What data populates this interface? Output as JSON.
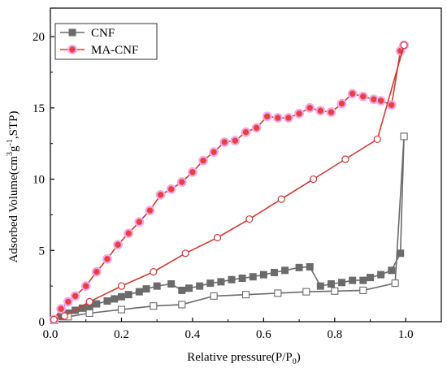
{
  "chart_data": {
    "type": "line",
    "xlabel": "Relative pressure(P/P0)",
    "xlabel_parts": {
      "main": "Relative pressure(P/P",
      "sub": "0",
      "end": ")"
    },
    "ylabel": "Adsorbed Volume(cm3g-1,STP)",
    "ylabel_parts": {
      "a": "Adsorbed Volume(cm",
      "sup1": "3",
      "b": "g",
      "sup2": "-1",
      "c": ",STP)"
    },
    "xlim": [
      0,
      1.1
    ],
    "ylim": [
      0,
      22
    ],
    "xticks": [
      0,
      0.2,
      0.4,
      0.6,
      0.8,
      1.0
    ],
    "xtick_labels": [
      "0.0",
      "0.2",
      "0.4",
      "0.6",
      "0.8",
      "1.0"
    ],
    "yticks": [
      0,
      5,
      10,
      15,
      20
    ],
    "ytick_labels": [
      "0",
      "5",
      "10",
      "15",
      "20"
    ],
    "grid": false,
    "legend_position": "top-left",
    "colors": {
      "CNF": "#6b6b6b",
      "MA-CNF": "#cf3b33",
      "MA-CNF-marker": "#e8403a",
      "MA-CNF-halo": "#f0a8ee"
    },
    "series": [
      {
        "name": "CNF",
        "marker": "square",
        "branch": "adsorption",
        "x": [
          0.01,
          0.03,
          0.05,
          0.07,
          0.09,
          0.11,
          0.13,
          0.16,
          0.18,
          0.2,
          0.22,
          0.25,
          0.27,
          0.3,
          0.34,
          0.37,
          0.39,
          0.42,
          0.45,
          0.48,
          0.51,
          0.54,
          0.57,
          0.6,
          0.63,
          0.66,
          0.7,
          0.73,
          0.76,
          0.79,
          0.82,
          0.85,
          0.88,
          0.9,
          0.93,
          0.96,
          0.985,
          0.995
        ],
        "y": [
          0.1,
          0.35,
          0.6,
          0.8,
          0.95,
          1.1,
          1.25,
          1.45,
          1.6,
          1.75,
          1.9,
          2.1,
          2.3,
          2.5,
          2.65,
          2.2,
          2.35,
          2.5,
          2.7,
          2.8,
          2.95,
          3.05,
          3.15,
          3.3,
          3.45,
          3.6,
          3.8,
          3.85,
          2.5,
          2.65,
          2.75,
          2.9,
          2.9,
          3.1,
          3.3,
          3.6,
          4.8,
          13.0
        ]
      },
      {
        "name": "CNF",
        "marker": "open-square",
        "branch": "desorption",
        "x": [
          0.995,
          0.97,
          0.88,
          0.8,
          0.72,
          0.64,
          0.55,
          0.46,
          0.37,
          0.29,
          0.2,
          0.11,
          0.05,
          0.01
        ],
        "y": [
          13.0,
          2.7,
          2.2,
          2.15,
          2.1,
          2.0,
          1.9,
          1.8,
          1.2,
          1.1,
          0.85,
          0.6,
          0.35,
          0.1
        ]
      },
      {
        "name": "MA-CNF",
        "marker": "circle",
        "branch": "adsorption",
        "x": [
          0.01,
          0.03,
          0.05,
          0.07,
          0.1,
          0.13,
          0.16,
          0.19,
          0.22,
          0.25,
          0.28,
          0.31,
          0.34,
          0.37,
          0.4,
          0.43,
          0.46,
          0.49,
          0.52,
          0.55,
          0.58,
          0.61,
          0.64,
          0.67,
          0.7,
          0.73,
          0.76,
          0.79,
          0.82,
          0.85,
          0.88,
          0.91,
          0.93,
          0.96,
          0.985,
          0.995
        ],
        "y": [
          0.15,
          0.9,
          1.4,
          1.8,
          2.5,
          3.5,
          4.4,
          5.4,
          6.2,
          7.0,
          7.8,
          8.9,
          9.3,
          9.8,
          10.5,
          11.3,
          11.9,
          12.6,
          12.7,
          13.3,
          13.6,
          14.4,
          14.3,
          14.3,
          14.6,
          15.0,
          14.8,
          14.7,
          15.3,
          16.0,
          15.8,
          15.6,
          15.5,
          15.2,
          19.0,
          19.4
        ]
      },
      {
        "name": "MA-CNF",
        "marker": "open-circle",
        "branch": "desorption",
        "x": [
          0.995,
          0.92,
          0.83,
          0.74,
          0.65,
          0.56,
          0.47,
          0.38,
          0.29,
          0.2,
          0.11,
          0.04,
          0.01
        ],
        "y": [
          19.4,
          12.8,
          11.4,
          10.0,
          8.6,
          7.2,
          5.9,
          4.8,
          3.5,
          2.5,
          1.4,
          0.4,
          0.15
        ]
      }
    ],
    "legend": [
      {
        "name": "CNF",
        "marker": "square"
      },
      {
        "name": "MA-CNF",
        "marker": "circle"
      }
    ]
  }
}
